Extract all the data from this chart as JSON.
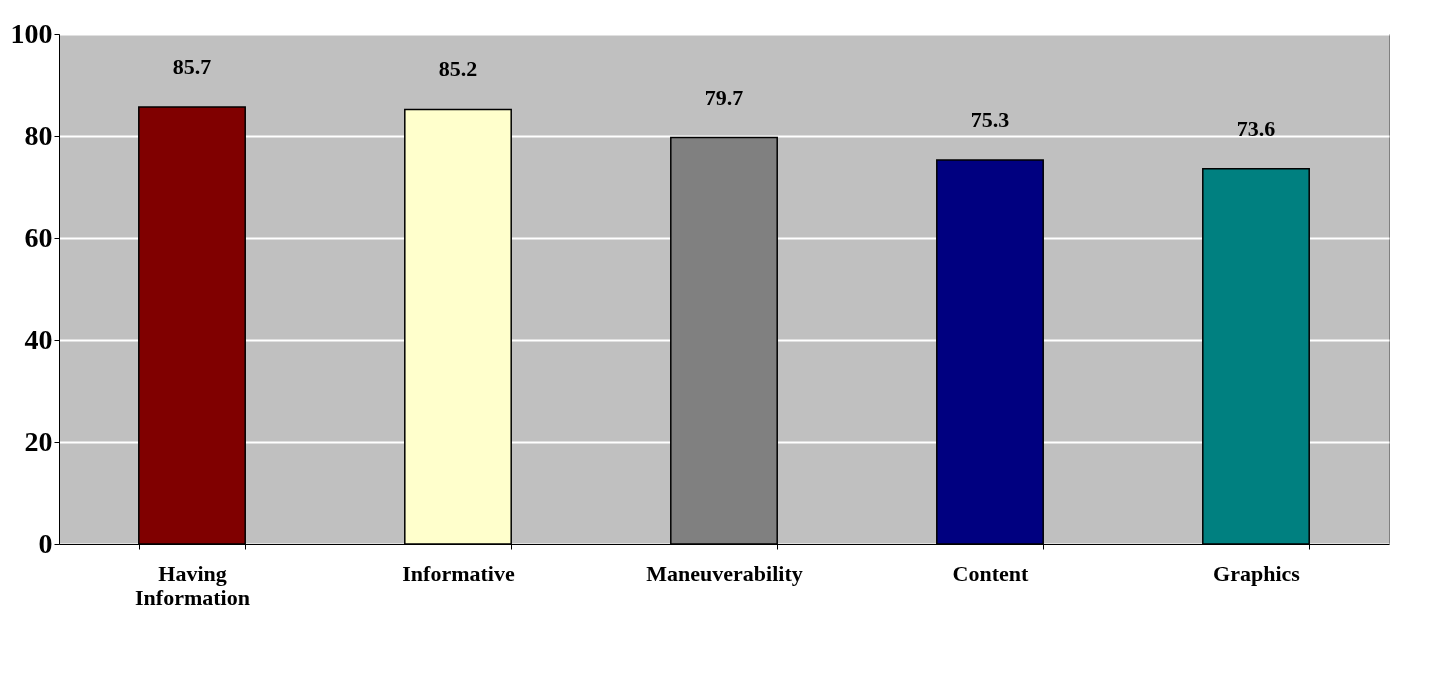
{
  "chart_data": {
    "type": "bar",
    "categories": [
      "Having Information",
      "Informative",
      "Maneuverability",
      "Content",
      "Graphics"
    ],
    "values": [
      85.7,
      85.2,
      79.7,
      75.3,
      73.6
    ],
    "colors": [
      "#800000",
      "#ffffcc",
      "#808080",
      "#000080",
      "#008080"
    ],
    "ylim": [
      0,
      100
    ],
    "yticks": [
      0,
      20,
      40,
      60,
      80,
      100
    ],
    "grid": "y",
    "data_labels": true,
    "legend": false
  }
}
